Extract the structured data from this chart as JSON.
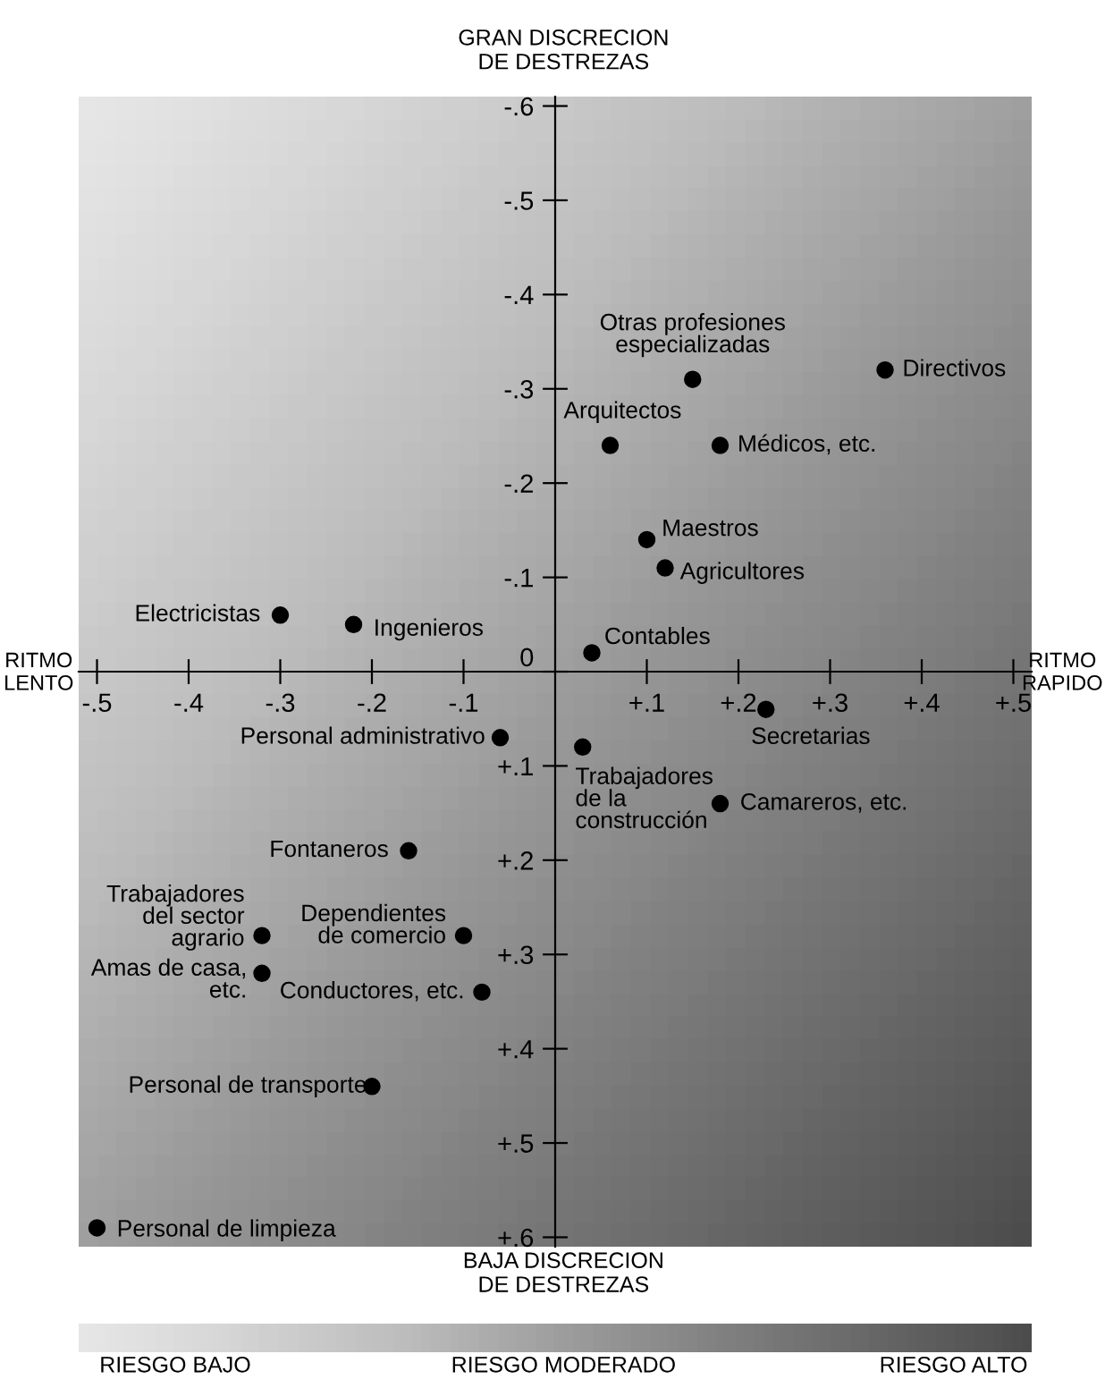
{
  "chart_data": {
    "type": "scatter",
    "marker": "circle",
    "grid": false,
    "x": [
      0.36,
      0.15,
      0.06,
      0.18,
      0.1,
      0.12,
      -0.3,
      -0.22,
      0.04,
      0.23,
      -0.06,
      0.03,
      0.18,
      -0.16,
      -0.32,
      -0.1,
      -0.32,
      -0.08,
      -0.2,
      -0.5
    ],
    "series": [
      {
        "color": "#000000",
        "values": [
          -0.32,
          -0.31,
          -0.24,
          -0.24,
          -0.14,
          -0.11,
          -0.06,
          -0.05,
          -0.02,
          0.04,
          0.07,
          0.08,
          0.14,
          0.19,
          0.28,
          0.28,
          0.32,
          0.34,
          0.44,
          0.59
        ]
      }
    ],
    "xlim": [
      -0.52,
      0.52
    ],
    "ylim": [
      0.61,
      -0.61
    ],
    "xticks": [
      {
        "value": -0.5,
        "label": "-.5"
      },
      {
        "value": -0.4,
        "label": "-.4"
      },
      {
        "value": -0.3,
        "label": "-.3"
      },
      {
        "value": -0.2,
        "label": "-.2"
      },
      {
        "value": -0.1,
        "label": "-.1"
      },
      {
        "value": 0.1,
        "label": "+.1"
      },
      {
        "value": 0.2,
        "label": "+.2"
      },
      {
        "value": 0.3,
        "label": "+.3"
      },
      {
        "value": 0.4,
        "label": "+.4"
      },
      {
        "value": 0.5,
        "label": "+.5"
      }
    ],
    "yticks": [
      {
        "value": -0.6,
        "label": "-.6"
      },
      {
        "value": -0.5,
        "label": "-.5"
      },
      {
        "value": -0.4,
        "label": "-.4"
      },
      {
        "value": -0.3,
        "label": "-.3"
      },
      {
        "value": -0.2,
        "label": "-.2"
      },
      {
        "value": -0.1,
        "label": "-.1"
      },
      0,
      {
        "value": 0.1,
        "label": "+.1"
      },
      {
        "value": 0.2,
        "label": "+.2"
      },
      {
        "value": 0.3,
        "label": "+.3"
      },
      {
        "value": 0.4,
        "label": "+.4"
      },
      {
        "value": 0.5,
        "label": "+.5"
      },
      {
        "value": 0.6,
        "label": "+.6"
      }
    ],
    "annotations": [
      "GRAN DISCRECION\nDE DESTREZAS",
      "BAJA DISCRECION\nDE DESTREZAS",
      "RITMO\nLENTO",
      "RITMO\nRAPIDO",
      "RIESGO BAJO",
      "RIESGO MODERADO",
      "RIESGO ALTO",
      {
        "text": "Directivos",
        "x": 0.36,
        "y": -0.32
      },
      {
        "text": "Otras profesiones\nespecializadas",
        "x": 0.15,
        "y": -0.31
      },
      {
        "text": "Arquitectos",
        "x": 0.06,
        "y": -0.24
      },
      {
        "text": "Médicos, etc.",
        "x": 0.18,
        "y": -0.24
      },
      {
        "text": "Maestros",
        "x": 0.1,
        "y": -0.14
      },
      {
        "text": "Agricultores",
        "x": 0.12,
        "y": -0.11
      },
      {
        "text": "Electricistas",
        "x": -0.3,
        "y": -0.06
      },
      {
        "text": "Ingenieros",
        "x": -0.22,
        "y": -0.05
      },
      {
        "text": "Contables",
        "x": 0.04,
        "y": -0.02
      },
      {
        "text": "Secretarias",
        "x": 0.23,
        "y": 0.04
      },
      {
        "text": "Personal administrativo",
        "x": -0.06,
        "y": 0.07
      },
      {
        "text": "Trabajadores\nde la\nconstrucción",
        "x": 0.03,
        "y": 0.08
      },
      {
        "text": "Camareros, etc.",
        "x": 0.18,
        "y": 0.14
      },
      {
        "text": "Fontaneros",
        "x": -0.16,
        "y": 0.19
      },
      {
        "text": "Trabajadores\ndel sector\nagrario",
        "x": -0.32,
        "y": 0.28
      },
      {
        "text": "Dependientes\nde comercio",
        "x": -0.1,
        "y": 0.28
      },
      {
        "text": "Amas de casa,\netc.",
        "x": -0.32,
        "y": 0.32
      },
      {
        "text": "Conductores, etc.",
        "x": -0.08,
        "y": 0.34
      },
      {
        "text": "Personal de transporte",
        "x": -0.2,
        "y": 0.44
      },
      {
        "text": "Personal de limpieza",
        "x": -0.5,
        "y": 0.59
      }
    ]
  }
}
